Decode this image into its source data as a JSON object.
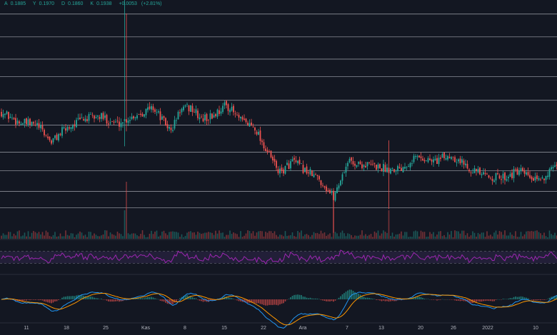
{
  "ohlc": {
    "open_label": "A",
    "open": "0.1885",
    "high_label": "Y",
    "high": "0.1970",
    "low_label": "D",
    "low": "0.1860",
    "close_label": "K",
    "close": "0.1938",
    "change": "+0.0053",
    "change_pct": "(+2.81%)"
  },
  "colors": {
    "background": "#131722",
    "up": "#26a69a",
    "down": "#ef5350",
    "rsi_line": "#9c27b0",
    "rsi_band": "#7e57c2",
    "macd_line": "#2196f3",
    "signal_line": "#ff9800",
    "hline": "#b2b5be",
    "axis_text": "#b2b5be"
  },
  "chart_data": {
    "type": "candlestick",
    "y_range": [
      0.18,
      0.34
    ],
    "horizontal_levels": [
      0.3306,
      0.3153,
      0.3004,
      0.2887,
      0.2728,
      0.2562,
      0.238,
      0.2256,
      0.2118,
      0.2007
    ],
    "x_ticks": [
      "11",
      "18",
      "25",
      "Kas",
      "8",
      "15",
      "22",
      "Ara",
      "7",
      "13",
      "20",
      "26",
      "2022",
      "10"
    ],
    "price_anchors": [
      [
        0,
        0.265
      ],
      [
        10,
        0.258
      ],
      [
        20,
        0.256
      ],
      [
        28,
        0.245
      ],
      [
        35,
        0.253
      ],
      [
        45,
        0.26
      ],
      [
        55,
        0.262
      ],
      [
        65,
        0.257
      ],
      [
        75,
        0.263
      ],
      [
        85,
        0.268
      ],
      [
        95,
        0.252
      ],
      [
        100,
        0.266
      ],
      [
        106,
        0.268
      ],
      [
        112,
        0.26
      ],
      [
        118,
        0.262
      ],
      [
        126,
        0.27
      ],
      [
        134,
        0.259
      ],
      [
        142,
        0.255
      ],
      [
        148,
        0.24
      ],
      [
        156,
        0.224
      ],
      [
        163,
        0.232
      ],
      [
        170,
        0.226
      ],
      [
        178,
        0.22
      ],
      [
        186,
        0.208
      ],
      [
        194,
        0.232
      ],
      [
        200,
        0.23
      ],
      [
        208,
        0.229
      ],
      [
        216,
        0.227
      ],
      [
        224,
        0.228
      ],
      [
        232,
        0.235
      ],
      [
        242,
        0.232
      ],
      [
        252,
        0.236
      ],
      [
        262,
        0.228
      ],
      [
        270,
        0.222
      ],
      [
        280,
        0.221
      ],
      [
        290,
        0.225
      ],
      [
        300,
        0.218
      ],
      [
        307,
        0.225
      ],
      [
        312,
        0.227
      ]
    ],
    "spikes": [
      {
        "i": 69,
        "high": 0.34,
        "low": 0.242
      },
      {
        "i": 70,
        "high": 0.331,
        "low": 0.252
      },
      {
        "i": 186,
        "high": 0.214,
        "low": 0.184
      },
      {
        "i": 217,
        "high": 0.246,
        "low": 0.2
      }
    ],
    "volume_spikes": [
      [
        69,
        40
      ],
      [
        70,
        80
      ],
      [
        186,
        66
      ],
      [
        217,
        40
      ]
    ],
    "rsi": {
      "bands": [
        70,
        30
      ],
      "range": [
        0,
        100
      ]
    },
    "macd": {
      "range": [
        -0.006,
        0.006
      ]
    }
  }
}
